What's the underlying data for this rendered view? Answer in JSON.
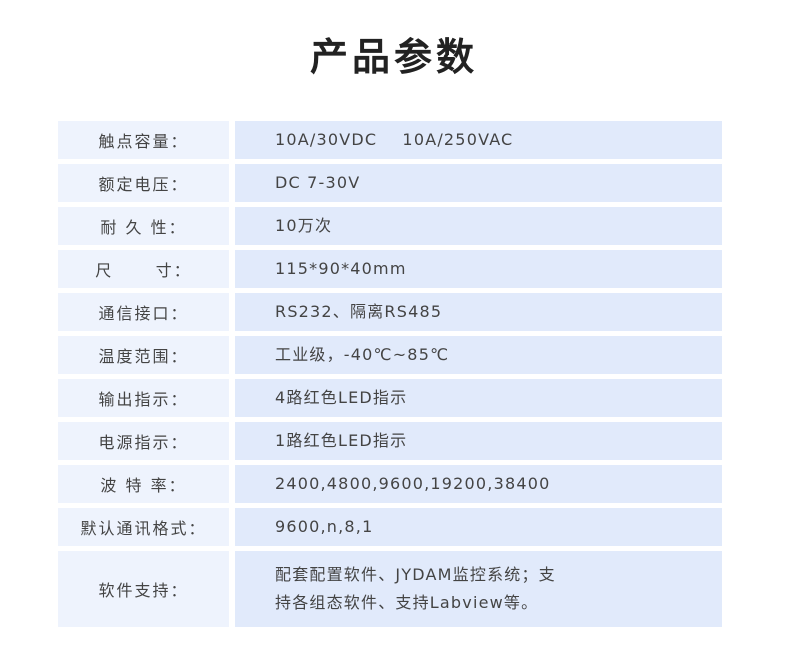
{
  "title": "产品参数",
  "rows": [
    {
      "label": "触点容量：",
      "value": "10A/30VDC    10A/250VAC"
    },
    {
      "label": "额定电压：",
      "value": "DC 7-30V"
    },
    {
      "label": "耐 久 性：",
      "value": "10万次"
    },
    {
      "label": "尺      寸：",
      "value": "115*90*40mm"
    },
    {
      "label": "通信接口：",
      "value": "RS232、隔离RS485"
    },
    {
      "label": "温度范围：",
      "value": "工业级，-40℃~85℃"
    },
    {
      "label": "输出指示：",
      "value": "4路红色LED指示"
    },
    {
      "label": "电源指示：",
      "value": "1路红色LED指示"
    },
    {
      "label": "波 特 率：",
      "value": "2400,4800,9600,19200,38400"
    },
    {
      "label": "默认通讯格式：",
      "value": "9600,n,8,1"
    },
    {
      "label": "软件支持：",
      "value": "配套配置软件、JYDAM监控系统；支\n持各组态软件、支持Labview等。"
    }
  ]
}
